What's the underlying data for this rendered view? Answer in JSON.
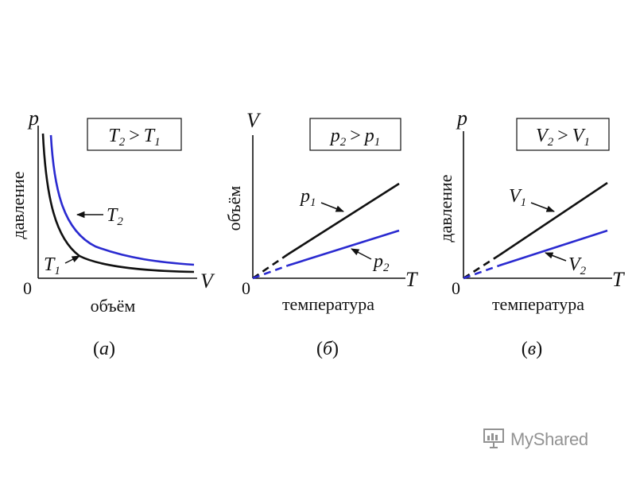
{
  "panels": [
    {
      "id": "a",
      "y_var": "p",
      "x_var": "V",
      "origin": "0",
      "y_axis_label": "давление",
      "x_axis_label": "объём",
      "legend": {
        "a": "T",
        "a_sub": "2",
        "op": ">",
        "b": "T",
        "b_sub": "1"
      },
      "curve_black": {
        "sym": "T",
        "sub": "1"
      },
      "curve_blue": {
        "sym": "T",
        "sub": "2"
      },
      "caption": {
        "open": "(",
        "letter": "а",
        "close": ")"
      }
    },
    {
      "id": "b",
      "y_var": "V",
      "x_var": "T",
      "origin": "0",
      "y_axis_label": "объём",
      "x_axis_label": "температура",
      "legend": {
        "a": "p",
        "a_sub": "2",
        "op": ">",
        "b": "p",
        "b_sub": "1"
      },
      "curve_black": {
        "sym": "p",
        "sub": "1"
      },
      "curve_blue": {
        "sym": "p",
        "sub": "2"
      },
      "caption": {
        "open": "(",
        "letter": "б",
        "close": ")"
      }
    },
    {
      "id": "c",
      "y_var": "p",
      "x_var": "T",
      "origin": "0",
      "y_axis_label": "давление",
      "x_axis_label": "температура",
      "legend": {
        "a": "V",
        "a_sub": "2",
        "op": ">",
        "b": "V",
        "b_sub": "1"
      },
      "curve_black": {
        "sym": "V",
        "sub": "1"
      },
      "curve_blue": {
        "sym": "V",
        "sub": "2"
      },
      "caption": {
        "open": "(",
        "letter": "в",
        "close": ")"
      }
    }
  ],
  "colors": {
    "black_curve": "#111111",
    "blue_curve": "#2a2ad0"
  },
  "watermark": {
    "text": "MyShared",
    "icon": "presentation-board-icon"
  }
}
